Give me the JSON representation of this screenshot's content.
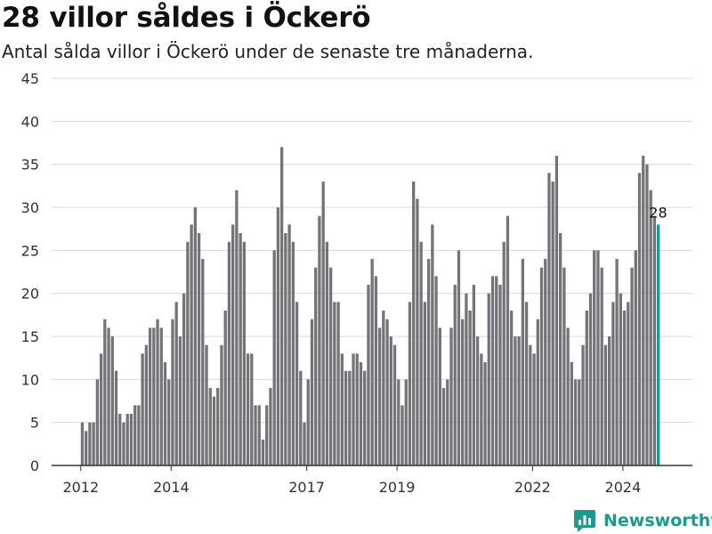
{
  "header": {
    "title": "28 villor såldes i Öckerö",
    "subtitle": "Antal sålda villor i Öckerö under de senaste tre månaderna."
  },
  "branding": {
    "text": "Newsworthy",
    "logo_icon": "newsworthy-logo-icon",
    "color": "#1e9a8d"
  },
  "colors": {
    "bar": "#747378",
    "highlight": "#1a9a8a",
    "grid": "#d9d9d9",
    "axis": "#333333"
  },
  "chart_data": {
    "type": "bar",
    "title": "28 villor såldes i Öckerö",
    "subtitle": "Antal sålda villor i Öckerö under de senaste tre månaderna.",
    "xlabel": "",
    "ylabel": "",
    "ylim": [
      0,
      45
    ],
    "yticks": [
      0,
      5,
      10,
      15,
      20,
      25,
      30,
      35,
      40,
      45
    ],
    "grid": true,
    "x_start": "2012-01",
    "x_end": "2025-06",
    "xticks": [
      {
        "label": "2012",
        "year": 2012
      },
      {
        "label": "2014",
        "year": 2014
      },
      {
        "label": "2017",
        "year": 2017
      },
      {
        "label": "2019",
        "year": 2019
      },
      {
        "label": "2022",
        "year": 2022
      },
      {
        "label": "2024",
        "year": 2024
      }
    ],
    "values": [
      5,
      4,
      5,
      5,
      10,
      13,
      17,
      16,
      15,
      11,
      6,
      5,
      6,
      6,
      7,
      7,
      13,
      14,
      16,
      16,
      17,
      16,
      12,
      10,
      17,
      19,
      15,
      20,
      26,
      28,
      30,
      27,
      24,
      14,
      9,
      8,
      9,
      14,
      18,
      26,
      28,
      32,
      27,
      26,
      13,
      13,
      7,
      7,
      3,
      7,
      9,
      25,
      30,
      37,
      27,
      28,
      26,
      19,
      11,
      5,
      10,
      17,
      23,
      29,
      33,
      26,
      23,
      19,
      19,
      13,
      11,
      11,
      13,
      13,
      12,
      11,
      21,
      24,
      22,
      16,
      18,
      17,
      15,
      14,
      10,
      7,
      10,
      19,
      33,
      31,
      26,
      19,
      24,
      28,
      22,
      16,
      9,
      10,
      16,
      21,
      25,
      17,
      20,
      18,
      21,
      15,
      13,
      12,
      20,
      22,
      22,
      21,
      26,
      29,
      18,
      15,
      15,
      24,
      19,
      14,
      13,
      17,
      23,
      24,
      34,
      33,
      36,
      27,
      23,
      16,
      12,
      10,
      10,
      14,
      18,
      20,
      25,
      25,
      23,
      14,
      15,
      19,
      24,
      20,
      18,
      19,
      23,
      25,
      34,
      36,
      35,
      32,
      29,
      28
    ],
    "highlight_last": true,
    "last_label": "28"
  }
}
